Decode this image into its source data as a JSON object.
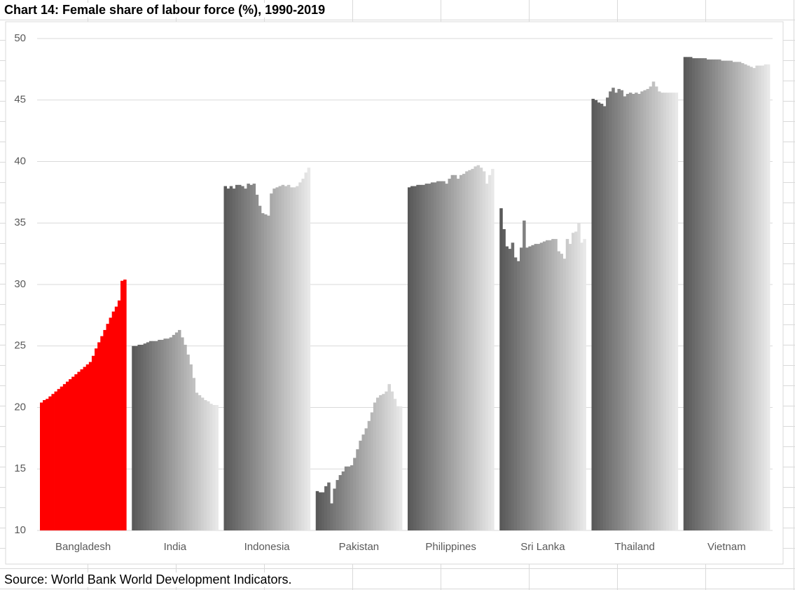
{
  "chart_data": {
    "type": "grouped-bar",
    "title": "Chart 14: Female share of labour force (%), 1990-2019",
    "source": "Source: World Bank World Development Indicators.",
    "categories": [
      "Bangladesh",
      "India",
      "Indonesia",
      "Pakistan",
      "Philippines",
      "Sri Lanka",
      "Thailand",
      "Vietnam"
    ],
    "colors": [
      "#ff0000",
      [
        "#595959",
        "#e8e8e8"
      ],
      [
        "#595959",
        "#e8e8e8"
      ],
      [
        "#595959",
        "#e8e8e8"
      ],
      [
        "#595959",
        "#e8e8e8"
      ],
      [
        "#595959",
        "#e8e8e8"
      ],
      [
        "#595959",
        "#e8e8e8"
      ],
      [
        "#595959",
        "#e8e8e8"
      ]
    ],
    "values": [
      [
        20.4,
        20.6,
        20.7,
        20.9,
        21.1,
        21.3,
        21.5,
        21.7,
        21.9,
        22.1,
        22.3,
        22.5,
        22.7,
        22.9,
        23.1,
        23.3,
        23.5,
        23.7,
        24.2,
        24.8,
        25.3,
        25.8,
        26.3,
        26.8,
        27.3,
        27.8,
        28.2,
        28.7,
        30.3,
        30.4
      ],
      [
        25.0,
        25.0,
        25.1,
        25.1,
        25.2,
        25.3,
        25.4,
        25.4,
        25.4,
        25.5,
        25.5,
        25.6,
        25.6,
        25.7,
        25.9,
        26.1,
        26.3,
        25.7,
        25.1,
        24.3,
        23.5,
        22.4,
        21.2,
        21.0,
        20.8,
        20.6,
        20.5,
        20.3,
        20.2,
        20.2
      ],
      [
        38.0,
        37.8,
        38.0,
        37.8,
        38.1,
        38.1,
        38.0,
        37.8,
        38.2,
        38.1,
        38.2,
        37.3,
        36.4,
        35.8,
        35.7,
        35.6,
        37.4,
        37.8,
        37.9,
        38.0,
        38.1,
        38.0,
        38.1,
        37.9,
        37.9,
        38.0,
        38.3,
        38.6,
        39.1,
        39.5
      ],
      [
        13.2,
        13.1,
        13.1,
        13.6,
        13.9,
        12.2,
        13.4,
        14.1,
        14.5,
        14.8,
        15.2,
        15.2,
        15.3,
        15.9,
        16.6,
        17.3,
        17.8,
        18.3,
        18.9,
        19.6,
        20.4,
        20.8,
        21.0,
        21.1,
        21.3,
        21.9,
        21.3,
        20.7,
        20.1,
        20.1
      ],
      [
        37.9,
        38.0,
        38.0,
        38.1,
        38.1,
        38.1,
        38.2,
        38.2,
        38.3,
        38.3,
        38.4,
        38.4,
        38.4,
        38.2,
        38.6,
        38.9,
        38.9,
        38.6,
        38.9,
        39.0,
        39.2,
        39.3,
        39.4,
        39.6,
        39.7,
        39.5,
        39.2,
        38.2,
        38.9,
        39.4
      ],
      [
        36.2,
        34.5,
        33.1,
        32.9,
        33.4,
        32.2,
        31.9,
        33.0,
        35.2,
        33.0,
        33.1,
        33.2,
        33.3,
        33.3,
        33.4,
        33.5,
        33.6,
        33.6,
        33.7,
        33.7,
        32.7,
        32.5,
        32.1,
        33.7,
        33.3,
        34.2,
        34.3,
        35.0,
        33.4,
        33.7
      ],
      [
        45.1,
        45.0,
        44.8,
        44.7,
        44.5,
        45.2,
        45.7,
        46.0,
        45.6,
        45.9,
        45.8,
        45.3,
        45.5,
        45.6,
        45.5,
        45.6,
        45.5,
        45.7,
        45.8,
        45.9,
        46.1,
        46.5,
        46.1,
        45.7,
        45.6,
        45.6,
        45.6,
        45.6,
        45.6,
        45.6
      ],
      [
        48.5,
        48.5,
        48.5,
        48.4,
        48.4,
        48.4,
        48.4,
        48.4,
        48.3,
        48.3,
        48.3,
        48.3,
        48.3,
        48.2,
        48.2,
        48.2,
        48.2,
        48.1,
        48.1,
        48.1,
        48.0,
        47.9,
        47.8,
        47.7,
        47.6,
        47.8,
        47.8,
        47.8,
        47.9,
        47.9
      ]
    ],
    "ylim": [
      10,
      50
    ],
    "yticks": [
      10,
      15,
      20,
      25,
      30,
      35,
      40,
      45,
      50
    ],
    "grid": true
  }
}
